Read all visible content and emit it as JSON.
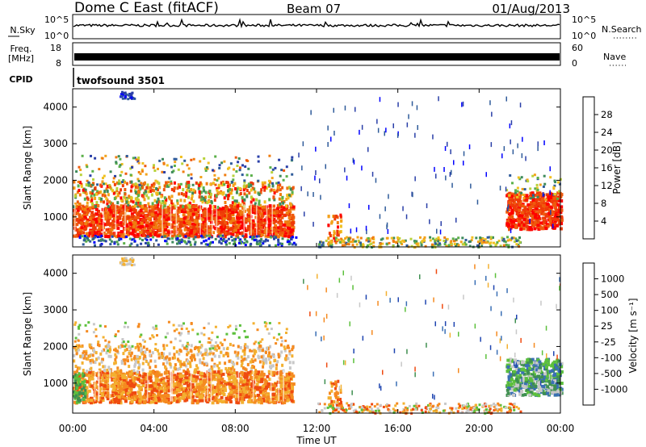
{
  "header": {
    "station": "Dome C East (fitACF)",
    "beam": "Beam 07",
    "date": "01/Aug/2013"
  },
  "noise_panel": {
    "left_label": "N.Sky",
    "left_ticks": [
      "10^5",
      "10^0"
    ],
    "right_ticks": [
      "10^5",
      "10^0"
    ],
    "right_label": "N.Search",
    "right_label_style": "dotted"
  },
  "freq_panel": {
    "left_label_line1": "Freq.",
    "left_label_line2": "[MHz]",
    "left_ticks": [
      "18",
      "8"
    ],
    "right_ticks": [
      "60",
      "0"
    ],
    "right_label": "Nave",
    "right_label_style": "dotted"
  },
  "cpid": {
    "label": "CPID",
    "value": "twofsound 3501"
  },
  "chart_data": [
    {
      "type": "heatmap",
      "title": "",
      "xlabel": "",
      "ylabel": "Slant Range [km]",
      "x_ticks": [
        "00:00",
        "04:00",
        "08:00",
        "12:00",
        "16:00",
        "20:00",
        "00:00"
      ],
      "y_ticks": [
        "1000",
        "2000",
        "3000",
        "4000"
      ],
      "xlim_hours": [
        0,
        24
      ],
      "ylim_km": [
        180,
        4500
      ],
      "colorbar": {
        "label": "Power [dB]",
        "ticks": [
          "4",
          "8",
          "12",
          "16",
          "20",
          "24",
          "28"
        ],
        "colors": [
          "#0000ff",
          "#2a3fa8",
          "#2f5b9a",
          "#3d8a5a",
          "#5bb04a",
          "#b8d23a",
          "#f0c020",
          "#f3a21a",
          "#f07d10",
          "#ef5a0d",
          "#ee3a08",
          "#ff0000"
        ]
      },
      "regions": [
        {
          "name": "main-echo-band",
          "t": [
            0,
            10.8
          ],
          "range_km": [
            500,
            1350
          ],
          "level": "high"
        },
        {
          "name": "upper-scatter",
          "t": [
            0,
            10.8
          ],
          "range_km": [
            1400,
            2600
          ],
          "level": "mixed"
        },
        {
          "name": "evening-echo",
          "t": [
            21.3,
            24
          ],
          "range_km": [
            700,
            1700
          ],
          "level": "high"
        },
        {
          "name": "near-range-ground",
          "t": [
            12,
            22
          ],
          "range_km": [
            200,
            500
          ],
          "level": "low"
        }
      ]
    },
    {
      "type": "heatmap",
      "title": "",
      "xlabel": "Time UT",
      "ylabel": "Slant Range [km]",
      "x_ticks": [
        "00:00",
        "04:00",
        "08:00",
        "12:00",
        "16:00",
        "20:00",
        "00:00"
      ],
      "y_ticks": [
        "1000",
        "2000",
        "3000",
        "4000"
      ],
      "xlim_hours": [
        0,
        24
      ],
      "ylim_km": [
        180,
        4500
      ],
      "colorbar": {
        "label": "Velocity [m s⁻¹]",
        "ticks": [
          "1000",
          "500",
          "100",
          "25",
          "-25",
          "-100",
          "-500",
          "-1000"
        ],
        "colors": [
          "#1f45b0",
          "#3a6fb5",
          "#3f8f50",
          "#5cc03c",
          "#c8c8c8",
          "#f3b030",
          "#f58a20",
          "#ef4a10",
          "#ff0000"
        ]
      },
      "regions": [
        {
          "name": "main-echo-band",
          "t": [
            0,
            10.8
          ],
          "range_km": [
            500,
            1350
          ],
          "velocity": "negative"
        },
        {
          "name": "upper-scatter",
          "t": [
            0,
            10.8
          ],
          "range_km": [
            1400,
            2600
          ],
          "velocity": "near-zero"
        },
        {
          "name": "evening-echo",
          "t": [
            21.3,
            24
          ],
          "range_km": [
            700,
            1700
          ],
          "velocity": "positive"
        }
      ]
    }
  ]
}
